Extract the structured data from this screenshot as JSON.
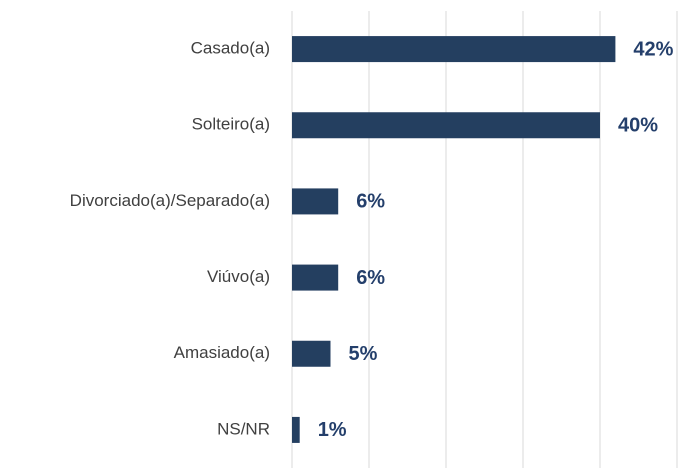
{
  "chart_data": {
    "type": "bar",
    "orientation": "horizontal",
    "categories": [
      "Casado(a)",
      "Solteiro(a)",
      "Divorciado(a)/Separado(a)",
      "Viúvo(a)",
      "Amasiado(a)",
      "NS/NR"
    ],
    "values": [
      42,
      40,
      6,
      6,
      5,
      1
    ],
    "value_labels": [
      "42%",
      "40%",
      "6%",
      "6%",
      "5%",
      "1%"
    ],
    "color": "#243f60",
    "xlim": [
      0,
      50
    ],
    "xticks": [
      0,
      10,
      20,
      30,
      40,
      50
    ],
    "grid": true
  }
}
